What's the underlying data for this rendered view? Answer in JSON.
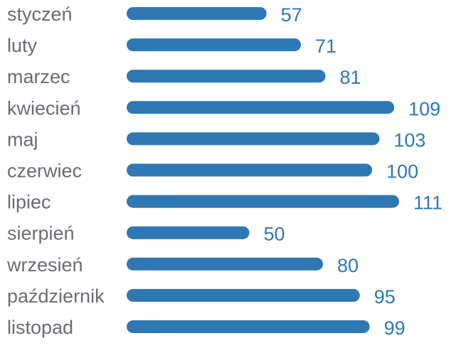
{
  "chart_data": {
    "type": "bar",
    "orientation": "horizontal",
    "categories": [
      "styczeń",
      "luty",
      "marzec",
      "kwiecień",
      "maj",
      "czerwiec",
      "lipiec",
      "sierpień",
      "wrzesień",
      "październik",
      "listopad"
    ],
    "values": [
      57,
      71,
      81,
      109,
      103,
      100,
      111,
      50,
      80,
      95,
      99
    ],
    "title": "",
    "xlabel": "",
    "ylabel": "",
    "xlim": [
      0,
      111
    ],
    "grid": false,
    "data_labels": true,
    "colors": {
      "bar": "#2e78b4",
      "category_text": "#6b6b73",
      "value_text": "#2e78b4",
      "background": "#ffffff"
    }
  }
}
